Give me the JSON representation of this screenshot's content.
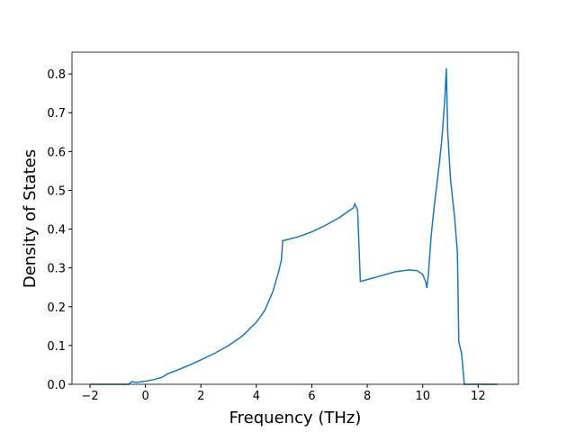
{
  "chart_data": {
    "type": "line",
    "xlabel": "Frequency (THz)",
    "ylabel": "Density of States",
    "x": [
      -2,
      -0.6,
      -0.5,
      -0.3,
      0,
      0.3,
      0.6,
      0.8,
      1.2,
      1.6,
      2,
      2.5,
      3,
      3.5,
      4,
      4.3,
      4.6,
      4.8,
      4.9,
      4.95,
      5.5,
      6,
      6.5,
      7,
      7.4,
      7.5,
      7.55,
      7.65,
      7.75,
      8,
      8.5,
      9,
      9.5,
      9.8,
      10,
      10.1,
      10.15,
      10.2,
      10.3,
      10.4,
      10.6,
      10.7,
      10.8,
      10.85,
      10.9,
      11,
      11.15,
      11.25,
      11.3,
      11.4,
      11.5,
      12,
      12.7
    ],
    "series": [
      {
        "color": "#1f77b4",
        "values": [
          0,
          0,
          0.007,
          0.005,
          0.008,
          0.012,
          0.018,
          0.027,
          0.038,
          0.05,
          0.063,
          0.08,
          0.1,
          0.125,
          0.16,
          0.19,
          0.24,
          0.29,
          0.32,
          0.37,
          0.38,
          0.393,
          0.41,
          0.43,
          0.45,
          0.455,
          0.465,
          0.45,
          0.265,
          0.27,
          0.28,
          0.29,
          0.295,
          0.293,
          0.283,
          0.265,
          0.248,
          0.28,
          0.38,
          0.45,
          0.57,
          0.64,
          0.74,
          0.815,
          0.65,
          0.53,
          0.43,
          0.34,
          0.11,
          0.08,
          0,
          0,
          0
        ]
      }
    ],
    "xlim": [
      -2.65,
      13.45
    ],
    "ylim": [
      0,
      0.856
    ],
    "xticks": [
      {
        "value": -2,
        "label": "−2"
      },
      0,
      2,
      4,
      6,
      8,
      10,
      12
    ],
    "yticks": [
      {
        "value": 0,
        "label": "0.0"
      },
      0.1,
      0.2,
      0.3,
      0.4,
      0.5,
      0.6,
      0.7,
      0.8
    ]
  }
}
